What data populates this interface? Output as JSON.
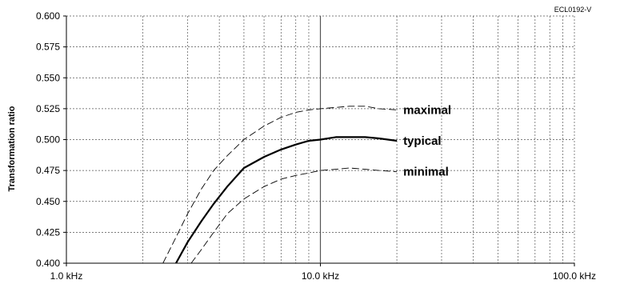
{
  "chart_data": {
    "type": "line",
    "code_label": "ECL0192-V",
    "ylabel": "Transformation ratio",
    "xscale": "log",
    "xlim": [
      1.0,
      100.0
    ],
    "ylim": [
      0.4,
      0.6
    ],
    "grid": true,
    "xticks": [
      {
        "value": 1.0,
        "label": "1.0 kHz"
      },
      {
        "value": 10.0,
        "label": "10.0 kHz"
      },
      {
        "value": 100.0,
        "label": "100.0 kHz"
      }
    ],
    "yticks": [
      {
        "value": 0.4,
        "label": "0.400"
      },
      {
        "value": 0.425,
        "label": "0.425"
      },
      {
        "value": 0.45,
        "label": "0.450"
      },
      {
        "value": 0.475,
        "label": "0.475"
      },
      {
        "value": 0.5,
        "label": "0.500"
      },
      {
        "value": 0.525,
        "label": "0.525"
      },
      {
        "value": 0.55,
        "label": "0.550"
      },
      {
        "value": 0.575,
        "label": "0.575"
      },
      {
        "value": 0.6,
        "label": "0.600"
      }
    ],
    "series": [
      {
        "name": "maximal",
        "style": "thin-dashed",
        "x": [
          2.4,
          2.7,
          3.0,
          3.4,
          3.8,
          4.3,
          5.0,
          6.0,
          7.0,
          8.0,
          9.0,
          10.0,
          11.5,
          13.0,
          15.0,
          17.0,
          20.0
        ],
        "y": [
          0.4,
          0.421,
          0.44,
          0.46,
          0.475,
          0.487,
          0.5,
          0.511,
          0.518,
          0.522,
          0.524,
          0.525,
          0.526,
          0.527,
          0.527,
          0.525,
          0.524
        ]
      },
      {
        "name": "typical",
        "style": "bold",
        "x": [
          2.7,
          3.0,
          3.4,
          3.8,
          4.3,
          5.0,
          6.0,
          7.0,
          8.0,
          9.0,
          10.0,
          11.5,
          13.0,
          15.0,
          17.0,
          20.0
        ],
        "y": [
          0.4,
          0.417,
          0.434,
          0.448,
          0.462,
          0.477,
          0.486,
          0.492,
          0.496,
          0.499,
          0.5,
          0.502,
          0.502,
          0.502,
          0.501,
          0.499
        ]
      },
      {
        "name": "minimal",
        "style": "thin-dashed",
        "x": [
          3.1,
          3.4,
          3.8,
          4.3,
          5.0,
          6.0,
          7.0,
          8.0,
          9.0,
          10.0,
          11.5,
          13.0,
          15.0,
          17.0,
          20.0
        ],
        "y": [
          0.4,
          0.411,
          0.425,
          0.44,
          0.452,
          0.462,
          0.468,
          0.471,
          0.473,
          0.475,
          0.476,
          0.477,
          0.476,
          0.475,
          0.474
        ]
      }
    ]
  }
}
